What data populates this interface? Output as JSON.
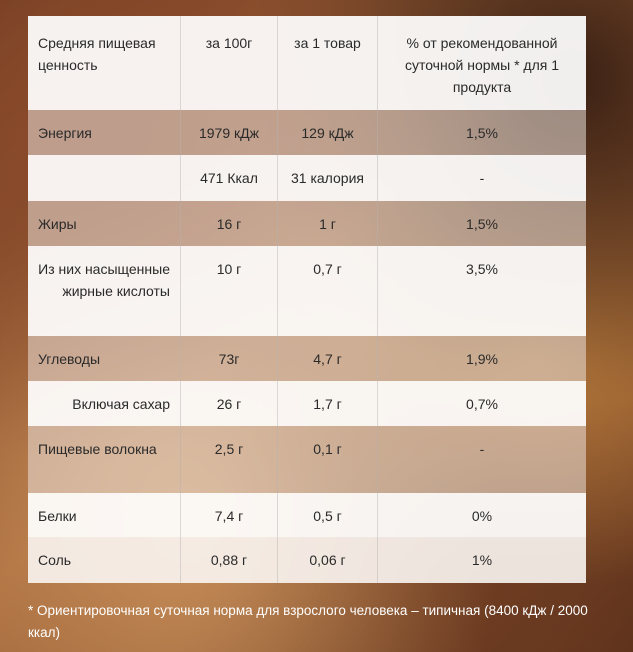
{
  "header": {
    "col1": "Средняя пищевая ценность",
    "col2": "за 100г",
    "col3": "за 1 товар",
    "col4": "% от рекомендованной суточной нормы * для 1 продукта"
  },
  "rows": [
    {
      "name": "Энергия",
      "per100": "1979 кДж",
      "perItem": "129 кДж",
      "pct": "1,5%"
    },
    {
      "name": "",
      "per100": "471 Ккал",
      "perItem": "31 калория",
      "pct": "-"
    },
    {
      "name": "Жиры",
      "per100": "16 г",
      "perItem": "1 г",
      "pct": "1,5%"
    },
    {
      "name": "Из них насыщенные жирные кислоты",
      "per100": "10 г",
      "perItem": "0,7 г",
      "pct": "3,5%"
    },
    {
      "name": "Углеводы",
      "per100": "73г",
      "perItem": "4,7 г",
      "pct": "1,9%"
    },
    {
      "name": "Включая сахар",
      "per100": "26 г",
      "perItem": "1,7 г",
      "pct": "0,7%"
    },
    {
      "name": "Пищевые волокна",
      "per100": "2,5 г",
      "perItem": "0,1 г",
      "pct": "-"
    },
    {
      "name": "Белки",
      "per100": "7,4 г",
      "perItem": "0,5 г",
      "pct": "0%"
    },
    {
      "name": "Соль",
      "per100": "0,88 г",
      "perItem": "0,06 г",
      "pct": "1%"
    }
  ],
  "footnote": "* Ориентировочная суточная норма для взрослого человека – типичная (8400 кДж / 2000 ккал)"
}
